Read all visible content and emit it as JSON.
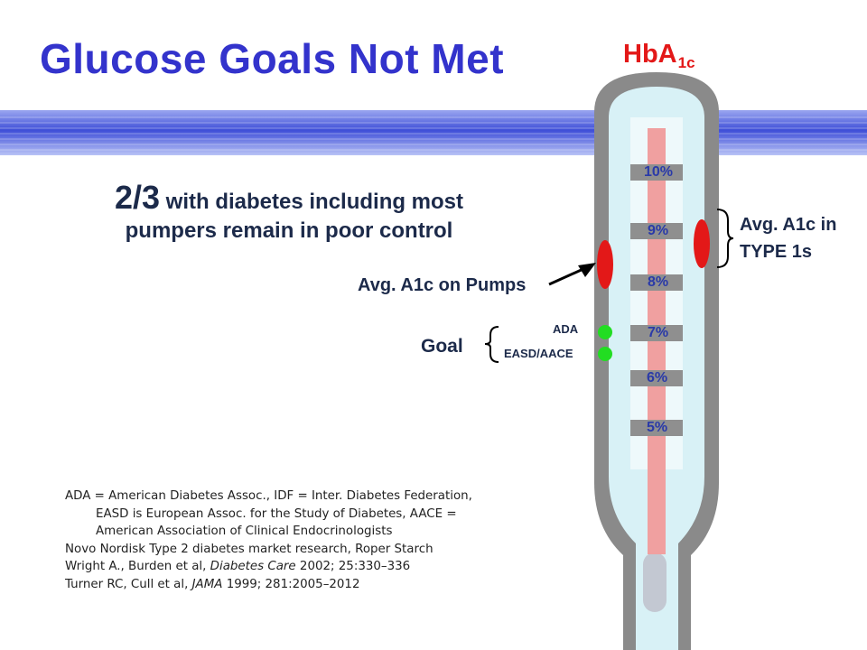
{
  "slide": {
    "title": "Glucose Goals Not Met",
    "headline": {
      "fraction": "2/3",
      "line1_rest": " with diabetes including most",
      "line2": "pumpers remain in poor control"
    },
    "labels": {
      "pumps": "Avg. A1c on Pumps",
      "type1_line1": "Avg. A1c in",
      "type1_line2": "TYPE 1s",
      "goal": "Goal",
      "ada": "ADA",
      "easd": "EASD/AACE"
    },
    "thermometer": {
      "title_main": "HbA",
      "title_sub": "1c",
      "ticks": [
        "10%",
        "9%",
        "8%",
        "7%",
        "6%",
        "5%"
      ]
    },
    "references": {
      "line1": "ADA = American Diabetes Assoc., IDF = Inter. Diabetes Federation,",
      "line2": "EASD is European Assoc. for the Study of Diabetes, AACE =",
      "line3": "American Association of Clinical Endocrinologists",
      "line4": "Novo Nordisk Type 2 diabetes market research, Roper Starch",
      "line5_a": "Wright A., Burden et al, ",
      "line5_journal": "Diabetes Care",
      "line5_b": " 2002; 25:330–336",
      "line6_a": "Turner RC, Cull et al, ",
      "line6_journal": "JAMA",
      "line6_b": " 1999; 281:2005–2012"
    },
    "colors": {
      "title": "#3333cc",
      "marker_red": "#e31818",
      "goal_green": "#22dd22",
      "mercury": "#f0a0a0",
      "tube_fill": "#d8f1f6",
      "tube_frame": "#8a8a8a"
    }
  }
}
